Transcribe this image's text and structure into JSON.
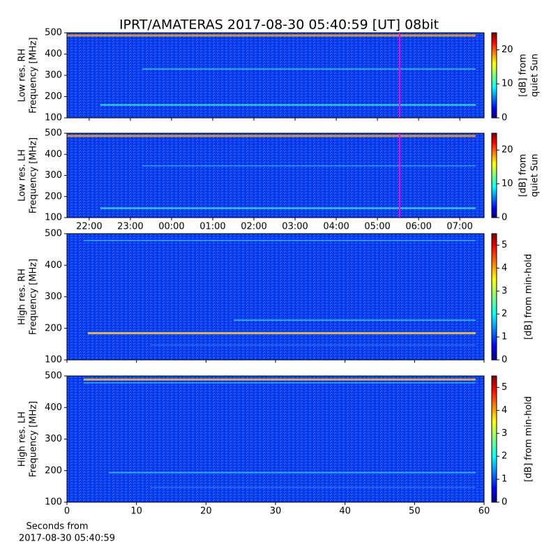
{
  "chart_data": [
    {
      "type": "heatmap",
      "title": "IPRT/AMATERAS 2017-08-30 05:40:59 [UT]   08bit",
      "ylabel": [
        "Low res. RH",
        "Frequency [MHz]"
      ],
      "ylim": [
        100,
        500
      ],
      "yticks": [
        100,
        200,
        300,
        400,
        500
      ],
      "xlim": [
        21.46,
        31.59
      ],
      "xticks": [
        22,
        23,
        24,
        25,
        26,
        27,
        28,
        29,
        30,
        31
      ],
      "show_xticklabels": false,
      "colormap": "jet",
      "colorbar": {
        "label": [
          "[dB] from",
          "quiet Sun"
        ],
        "lim": [
          0,
          25
        ],
        "ticks": [
          0,
          10,
          20
        ]
      }
    },
    {
      "type": "heatmap",
      "ylabel": [
        "Low res. LH",
        "Frequency [MHz]"
      ],
      "ylim": [
        100,
        500
      ],
      "yticks": [
        100,
        200,
        300,
        400,
        500
      ],
      "xlim": [
        21.46,
        31.59
      ],
      "xticks": [
        {
          "value": 22,
          "label": "22:00"
        },
        {
          "value": 23,
          "label": "23:00"
        },
        {
          "value": 24,
          "label": "00:00"
        },
        {
          "value": 25,
          "label": "01:00"
        },
        {
          "value": 26,
          "label": "02:00"
        },
        {
          "value": 27,
          "label": "03:00"
        },
        {
          "value": 28,
          "label": "04:00"
        },
        {
          "value": 29,
          "label": "05:00"
        },
        {
          "value": 30,
          "label": "06:00"
        },
        {
          "value": 31,
          "label": "07:00"
        }
      ],
      "show_xticklabels": true,
      "colormap": "jet",
      "colorbar": {
        "label": [
          "[dB] from",
          "quiet Sun"
        ],
        "lim": [
          0,
          25
        ],
        "ticks": [
          0,
          10,
          20
        ]
      }
    },
    {
      "type": "heatmap",
      "ylabel": [
        "High res. RH",
        "Frequency [MHz]"
      ],
      "ylim": [
        100,
        500
      ],
      "yticks": [
        100,
        200,
        300,
        400,
        500
      ],
      "xlim": [
        0,
        60
      ],
      "xticks": [
        0,
        10,
        20,
        30,
        40,
        50,
        60
      ],
      "show_xticklabels": false,
      "colormap": "jet",
      "colorbar": {
        "label": [
          "[dB] from min-hold"
        ],
        "lim": [
          0,
          5.5
        ],
        "ticks": [
          0,
          1,
          2,
          3,
          4,
          5
        ]
      }
    },
    {
      "type": "heatmap",
      "ylabel": [
        "High res. LH",
        "Frequency [MHz]"
      ],
      "ylim": [
        100,
        500
      ],
      "yticks": [
        100,
        200,
        300,
        400,
        500
      ],
      "xlim": [
        0,
        60
      ],
      "xticks": [
        0,
        10,
        20,
        30,
        40,
        50,
        60
      ],
      "show_xticklabels": true,
      "xlabel": [
        "Seconds from",
        "2017-08-30 05:40:59"
      ],
      "colormap": "jet",
      "colorbar": {
        "label": [
          "[dB] from min-hold"
        ],
        "lim": [
          0,
          5.5
        ],
        "ticks": [
          0,
          1,
          2,
          3,
          4,
          5
        ]
      }
    }
  ]
}
